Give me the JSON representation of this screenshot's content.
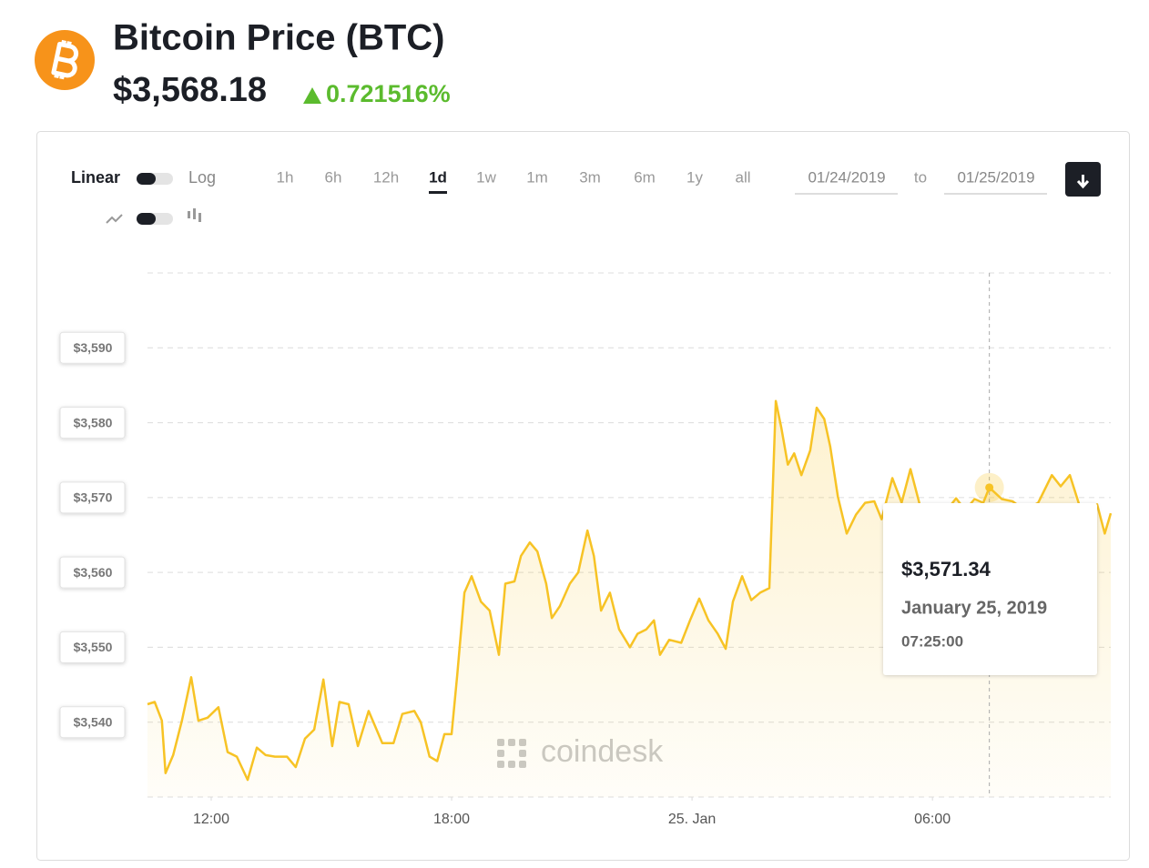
{
  "header": {
    "title": "Bitcoin Price (BTC)",
    "price": "$3,568.18",
    "change": "0.721516%"
  },
  "controls": {
    "scale": [
      "Linear",
      "Log"
    ],
    "ranges": [
      "1h",
      "6h",
      "12h",
      "1d",
      "1w",
      "1m",
      "3m",
      "6m",
      "1y",
      "all"
    ],
    "active_range": "1d",
    "date_from": "01/24/2019",
    "to": "to",
    "date_to": "01/25/2019"
  },
  "chart_data": {
    "type": "line",
    "color": "#f7c325",
    "grid": true,
    "watermark": "coindesk",
    "x": [
      10.41,
      10.59,
      10.77,
      10.86,
      11.05,
      11.27,
      11.5,
      11.68,
      11.91,
      12.18,
      12.41,
      12.64,
      12.91,
      13.14,
      13.36,
      13.59,
      13.89,
      14.11,
      14.34,
      14.57,
      14.8,
      15.02,
      15.2,
      15.43,
      15.66,
      15.93,
      16.27,
      16.55,
      16.77,
      17.07,
      17.23,
      17.45,
      17.64,
      17.82,
      18,
      18.14,
      18.32,
      18.5,
      18.73,
      18.95,
      19.18,
      19.34,
      19.57,
      19.73,
      19.95,
      20.14,
      20.36,
      20.5,
      20.7,
      20.95,
      21.16,
      21.39,
      21.55,
      21.73,
      21.95,
      22.18,
      22.45,
      22.64,
      22.86,
      23.05,
      23.2,
      23.43,
      23.73,
      23.95,
      24.18,
      24.41,
      24.64,
      24.84,
      25.02,
      25.25,
      25.48,
      25.7,
      25.93,
      26.09,
      26.23,
      26.39,
      26.55,
      26.73,
      26.95,
      27.11,
      27.3,
      27.45,
      27.64,
      27.86,
      28.09,
      28.32,
      28.55,
      28.73,
      29,
      29.23,
      29.45,
      29.68,
      29.91,
      30.14,
      30.36,
      30.59,
      30.82,
      31.05,
      31.27,
      31.42,
      31.73,
      32,
      32.3,
      32.64,
      32.98,
      33.2,
      33.43,
      33.66,
      33.89,
      34.11,
      34.3,
      34.45
    ],
    "values": [
      3542.4,
      3542.7,
      3540.2,
      3533.2,
      3535.6,
      3540.2,
      3546,
      3540.2,
      3540.6,
      3542,
      3536,
      3535.4,
      3532.3,
      3536.6,
      3535.6,
      3535.4,
      3535.4,
      3534,
      3537.8,
      3539,
      3545.7,
      3536.8,
      3542.7,
      3542.4,
      3536.8,
      3541.5,
      3537.2,
      3537.2,
      3541.1,
      3541.5,
      3540,
      3535.4,
      3534.8,
      3538.4,
      3538.4,
      3546.3,
      3557.3,
      3559.5,
      3556.1,
      3554.9,
      3549,
      3558.5,
      3558.8,
      3562.2,
      3564,
      3562.8,
      3558.5,
      3553.9,
      3555.5,
      3558.5,
      3560,
      3565.6,
      3562.2,
      3554.9,
      3557.3,
      3552.4,
      3550,
      3551.8,
      3552.4,
      3553.6,
      3549,
      3551,
      3550.6,
      3553.6,
      3556.5,
      3553.6,
      3551.8,
      3549.8,
      3556.1,
      3559.5,
      3556.3,
      3557.3,
      3557.9,
      3582.9,
      3579.3,
      3574.4,
      3575.9,
      3573,
      3576.3,
      3582,
      3580.5,
      3576.8,
      3570.1,
      3565.2,
      3567.7,
      3569.3,
      3569.5,
      3567.1,
      3572.6,
      3569.3,
      3573.8,
      3569.1,
      3568.3,
      3568.8,
      3568.3,
      3569.9,
      3568.3,
      3569.8,
      3569.3,
      3571.34,
      3569.8,
      3569.5,
      3568.3,
      3569.3,
      3573,
      3571.5,
      3573,
      3569.1,
      3568.3,
      3569.1,
      3565.2,
      3567.9
    ],
    "xlim": [
      10.41,
      34.45
    ],
    "xticks": [
      {
        "value": 12,
        "label": "12:00"
      },
      {
        "value": 18,
        "label": "18:00"
      },
      {
        "value": 24,
        "label": "25. Jan"
      },
      {
        "value": 30,
        "label": "06:00"
      }
    ],
    "ylim": [
      3530,
      3600
    ],
    "yticks": [
      {
        "value": 3540,
        "label": "$3,540"
      },
      {
        "value": 3550,
        "label": "$3,550"
      },
      {
        "value": 3560,
        "label": "$3,560"
      },
      {
        "value": 3570,
        "label": "$3,570"
      },
      {
        "value": 3580,
        "label": "$3,580"
      },
      {
        "value": 3590,
        "label": "$3,590"
      }
    ],
    "tooltip": {
      "x": 31.42,
      "value": 3571.34,
      "value_label": "$3,571.34",
      "date": "January 25, 2019",
      "time": "07:25:00"
    }
  }
}
